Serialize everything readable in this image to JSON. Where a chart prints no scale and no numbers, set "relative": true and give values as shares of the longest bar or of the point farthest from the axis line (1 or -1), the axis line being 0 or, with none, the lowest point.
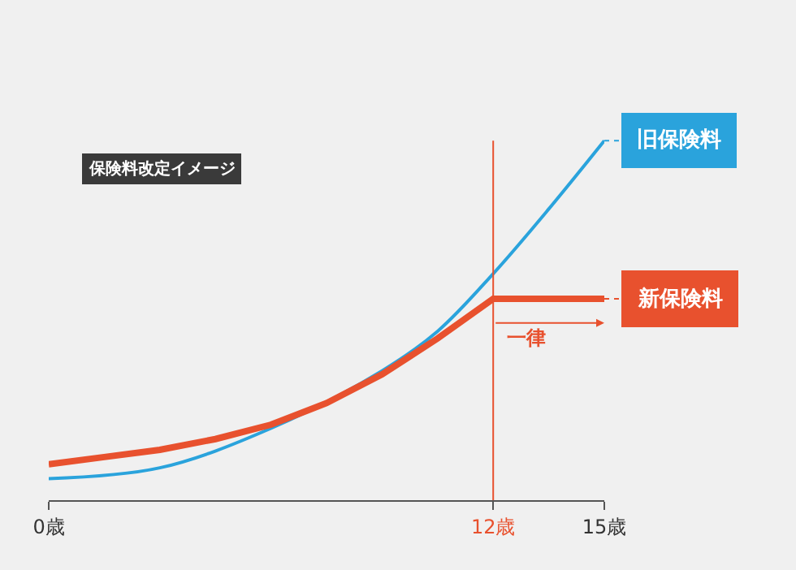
{
  "chart_data": {
    "type": "line",
    "title": "保険料改定イメージ",
    "relative": true,
    "x": [
      0,
      3,
      6,
      9,
      10.5,
      12,
      13.5,
      15
    ],
    "series": [
      {
        "name": "旧保険料",
        "color": "#2aa3dc",
        "values": [
          0.06,
          0.09,
          0.2,
          0.36,
          0.47,
          0.63,
          0.81,
          1
        ]
      },
      {
        "name": "新保険料",
        "color": "#e8512e",
        "x": [
          0,
          1.5,
          3,
          4.5,
          6,
          7.5,
          9,
          10.5,
          12,
          15
        ],
        "values": [
          0.1,
          0.12,
          0.14,
          0.17,
          0.21,
          0.27,
          0.35,
          0.45,
          0.56,
          0.56
        ]
      }
    ],
    "xlim": [
      0,
      15
    ],
    "xticks": [
      {
        "value": 0,
        "label": "0歳"
      },
      {
        "value": 12,
        "label": "12歳"
      },
      {
        "value": 15,
        "label": "15歳"
      }
    ],
    "ref_lines": [
      {
        "axis": "x",
        "value": 12,
        "color": "#e8512e"
      }
    ],
    "annotations": [
      "一律"
    ],
    "grid": false,
    "legend": "right"
  }
}
